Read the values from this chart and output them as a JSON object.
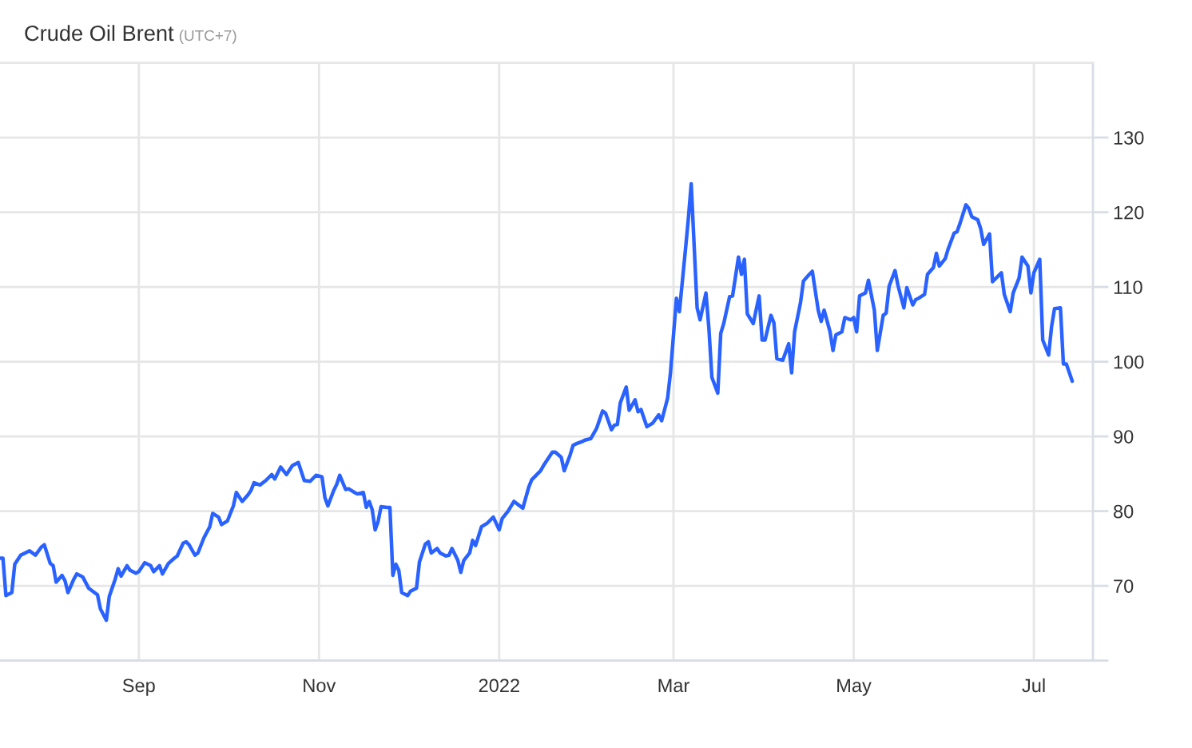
{
  "chart_data": {
    "type": "line",
    "title": "Crude Oil Brent",
    "subtitle": "(UTC+7)",
    "x": [
      "2021-07-16",
      "2021-07-17",
      "2021-07-18",
      "2021-07-20",
      "2021-07-21",
      "2021-07-23",
      "2021-07-26",
      "2021-07-28",
      "2021-07-30",
      "2021-07-31",
      "2021-08-02",
      "2021-08-03",
      "2021-08-04",
      "2021-08-06",
      "2021-08-07",
      "2021-08-08",
      "2021-08-10",
      "2021-08-11",
      "2021-08-13",
      "2021-08-15",
      "2021-08-18",
      "2021-08-19",
      "2021-08-21",
      "2021-08-22",
      "2021-08-24",
      "2021-08-25",
      "2021-08-26",
      "2021-08-28",
      "2021-08-29",
      "2021-08-31",
      "2021-09-01",
      "2021-09-03",
      "2021-09-05",
      "2021-09-06",
      "2021-09-08",
      "2021-09-09",
      "2021-09-11",
      "2021-09-13",
      "2021-09-14",
      "2021-09-16",
      "2021-09-17",
      "2021-09-18",
      "2021-09-20",
      "2021-09-21",
      "2021-09-23",
      "2021-09-25",
      "2021-09-26",
      "2021-09-28",
      "2021-09-29",
      "2021-10-01",
      "2021-10-03",
      "2021-10-04",
      "2021-10-06",
      "2021-10-08",
      "2021-10-09",
      "2021-10-10",
      "2021-10-12",
      "2021-10-14",
      "2021-10-16",
      "2021-10-17",
      "2021-10-19",
      "2021-10-21",
      "2021-10-23",
      "2021-10-25",
      "2021-10-27",
      "2021-10-29",
      "2021-10-31",
      "2021-11-02",
      "2021-11-03",
      "2021-11-04",
      "2021-11-06",
      "2021-11-07",
      "2021-11-08",
      "2021-11-10",
      "2021-11-11",
      "2021-11-13",
      "2021-11-14",
      "2021-11-16",
      "2021-11-17",
      "2021-11-18",
      "2021-11-19",
      "2021-11-20",
      "2021-11-21",
      "2021-11-22",
      "2021-11-24",
      "2021-11-25",
      "2021-11-26",
      "2021-11-27",
      "2021-11-28",
      "2021-11-29",
      "2021-12-01",
      "2021-12-02",
      "2021-12-04",
      "2021-12-05",
      "2021-12-07",
      "2021-12-08",
      "2021-12-09",
      "2021-12-11",
      "2021-12-12",
      "2021-12-14",
      "2021-12-15",
      "2021-12-16",
      "2021-12-18",
      "2021-12-19",
      "2021-12-20",
      "2021-12-22",
      "2021-12-23",
      "2021-12-24",
      "2021-12-26",
      "2021-12-28",
      "2021-12-30",
      "2022-01-01",
      "2022-01-02",
      "2022-01-04",
      "2022-01-06",
      "2022-01-09",
      "2022-01-11",
      "2022-01-12",
      "2022-01-15",
      "2022-01-16",
      "2022-01-19",
      "2022-01-20",
      "2022-01-22",
      "2022-01-23",
      "2022-01-25",
      "2022-01-26",
      "2022-01-27",
      "2022-01-29",
      "2022-01-30",
      "2022-02-01",
      "2022-02-03",
      "2022-02-05",
      "2022-02-06",
      "2022-02-08",
      "2022-02-09",
      "2022-02-10",
      "2022-02-11",
      "2022-02-13",
      "2022-02-14",
      "2022-02-16",
      "2022-02-17",
      "2022-02-18",
      "2022-02-20",
      "2022-02-22",
      "2022-02-24",
      "2022-02-25",
      "2022-02-27",
      "2022-02-28",
      "2022-03-02",
      "2022-03-03",
      "2022-03-05",
      "2022-03-06",
      "2022-03-07",
      "2022-03-09",
      "2022-03-10",
      "2022-03-12",
      "2022-03-13",
      "2022-03-14",
      "2022-03-16",
      "2022-03-17",
      "2022-03-18",
      "2022-03-20",
      "2022-03-21",
      "2022-03-23",
      "2022-03-24",
      "2022-03-25",
      "2022-03-26",
      "2022-03-28",
      "2022-03-30",
      "2022-03-31",
      "2022-04-01",
      "2022-04-03",
      "2022-04-04",
      "2022-04-05",
      "2022-04-07",
      "2022-04-09",
      "2022-04-10",
      "2022-04-11",
      "2022-04-13",
      "2022-04-14",
      "2022-04-16",
      "2022-04-17",
      "2022-04-19",
      "2022-04-20",
      "2022-04-21",
      "2022-04-23",
      "2022-04-24",
      "2022-04-25",
      "2022-04-27",
      "2022-04-28",
      "2022-04-30",
      "2022-05-01",
      "2022-05-02",
      "2022-05-03",
      "2022-05-05",
      "2022-05-06",
      "2022-05-08",
      "2022-05-09",
      "2022-05-11",
      "2022-05-12",
      "2022-05-13",
      "2022-05-15",
      "2022-05-16",
      "2022-05-18",
      "2022-05-19",
      "2022-05-21",
      "2022-05-22",
      "2022-05-23",
      "2022-05-25",
      "2022-05-26",
      "2022-05-28",
      "2022-05-29",
      "2022-05-30",
      "2022-06-01",
      "2022-06-02",
      "2022-06-04",
      "2022-06-05",
      "2022-06-06",
      "2022-06-08",
      "2022-06-09",
      "2022-06-10",
      "2022-06-12",
      "2022-06-13",
      "2022-06-14",
      "2022-06-16",
      "2022-06-17",
      "2022-06-19",
      "2022-06-20",
      "2022-06-21",
      "2022-06-23",
      "2022-06-24",
      "2022-06-26",
      "2022-06-27",
      "2022-06-29",
      "2022-06-30",
      "2022-07-01",
      "2022-07-03",
      "2022-07-04",
      "2022-07-06",
      "2022-07-07",
      "2022-07-08",
      "2022-07-10",
      "2022-07-11",
      "2022-07-12",
      "2022-07-14"
    ],
    "series": [
      {
        "color": "#2962ff",
        "values": [
          73.7,
          73.7,
          68.7,
          69.1,
          72.9,
          74.1,
          74.7,
          74.1,
          75.2,
          75.5,
          73.0,
          72.7,
          70.5,
          71.4,
          70.7,
          69.1,
          70.9,
          71.6,
          71.2,
          69.7,
          68.8,
          66.9,
          65.4,
          68.6,
          70.9,
          72.3,
          71.3,
          72.7,
          72.1,
          71.7,
          71.9,
          73.1,
          72.7,
          71.9,
          72.7,
          71.6,
          73.0,
          73.7,
          74.0,
          75.7,
          75.9,
          75.5,
          74.1,
          74.4,
          76.4,
          77.9,
          79.7,
          79.2,
          78.2,
          78.7,
          80.7,
          82.5,
          81.3,
          82.2,
          82.8,
          83.8,
          83.5,
          84.1,
          84.9,
          84.3,
          85.9,
          84.9,
          86.1,
          86.5,
          84.1,
          84.0,
          84.8,
          84.6,
          81.8,
          80.7,
          82.8,
          83.6,
          84.8,
          82.9,
          83.0,
          82.5,
          82.3,
          82.5,
          80.5,
          81.3,
          80.2,
          77.5,
          78.6,
          80.6,
          80.5,
          80.5,
          71.4,
          72.9,
          72.1,
          69.1,
          68.7,
          69.3,
          69.7,
          73.2,
          75.6,
          75.9,
          74.4,
          75.0,
          74.4,
          74.0,
          74.1,
          75.0,
          73.4,
          71.8,
          73.4,
          74.4,
          76.1,
          75.4,
          77.9,
          78.4,
          79.2,
          77.5,
          79.0,
          80.0,
          81.3,
          80.4,
          83.2,
          84.2,
          85.4,
          86.1,
          87.9,
          87.9,
          87.2,
          85.4,
          87.5,
          88.8,
          89.0,
          89.3,
          89.5,
          89.7,
          91.1,
          93.4,
          93.1,
          90.9,
          91.5,
          91.6,
          94.5,
          96.6,
          93.5,
          94.9,
          93.3,
          93.6,
          91.3,
          91.8,
          92.9,
          92.1,
          95.1,
          98.6,
          108.5,
          106.7,
          114.8,
          119.0,
          123.8,
          107.2,
          105.6,
          109.2,
          104.4,
          97.9,
          95.8,
          103.8,
          105.1,
          108.7,
          108.8,
          114.0,
          111.7,
          113.7,
          106.4,
          105.1,
          108.8,
          102.9,
          102.9,
          106.2,
          105.2,
          100.4,
          100.2,
          102.4,
          98.5,
          104.0,
          107.9,
          110.8,
          111.7,
          112.1,
          106.9,
          105.4,
          106.9,
          104.0,
          101.5,
          103.6,
          104.0,
          105.9,
          105.6,
          105.9,
          104.0,
          108.8,
          109.2,
          110.9,
          106.9,
          101.5,
          106.2,
          106.5,
          110.1,
          112.2,
          110.2,
          107.2,
          109.9,
          107.6,
          108.3,
          108.5,
          109.0,
          111.7,
          112.6,
          114.5,
          112.8,
          113.8,
          115.1,
          117.2,
          117.4,
          118.5,
          121.0,
          120.5,
          119.4,
          119.0,
          117.8,
          115.7,
          117.1,
          110.7,
          111.5,
          111.9,
          109.0,
          106.7,
          109.2,
          111.2,
          114.0,
          112.8,
          109.2,
          111.9,
          113.7,
          102.9,
          100.9,
          104.7,
          107.1,
          107.2,
          99.7,
          99.7,
          97.4
        ]
      }
    ],
    "xlim": [
      "2021-07-16",
      "2022-07-21"
    ],
    "xticks": [
      {
        "value": "2021-09-01",
        "label": "Sep"
      },
      {
        "value": "2021-11-01",
        "label": "Nov"
      },
      {
        "value": "2022-01-01",
        "label": "2022"
      },
      {
        "value": "2022-03-01",
        "label": "Mar"
      },
      {
        "value": "2022-05-01",
        "label": "May"
      },
      {
        "value": "2022-07-01",
        "label": "Jul"
      }
    ],
    "ylim": [
      60,
      140
    ],
    "yticks": [
      {
        "value": 60,
        "label": null
      },
      70,
      80,
      90,
      100,
      110,
      120,
      130
    ],
    "grid": true
  }
}
